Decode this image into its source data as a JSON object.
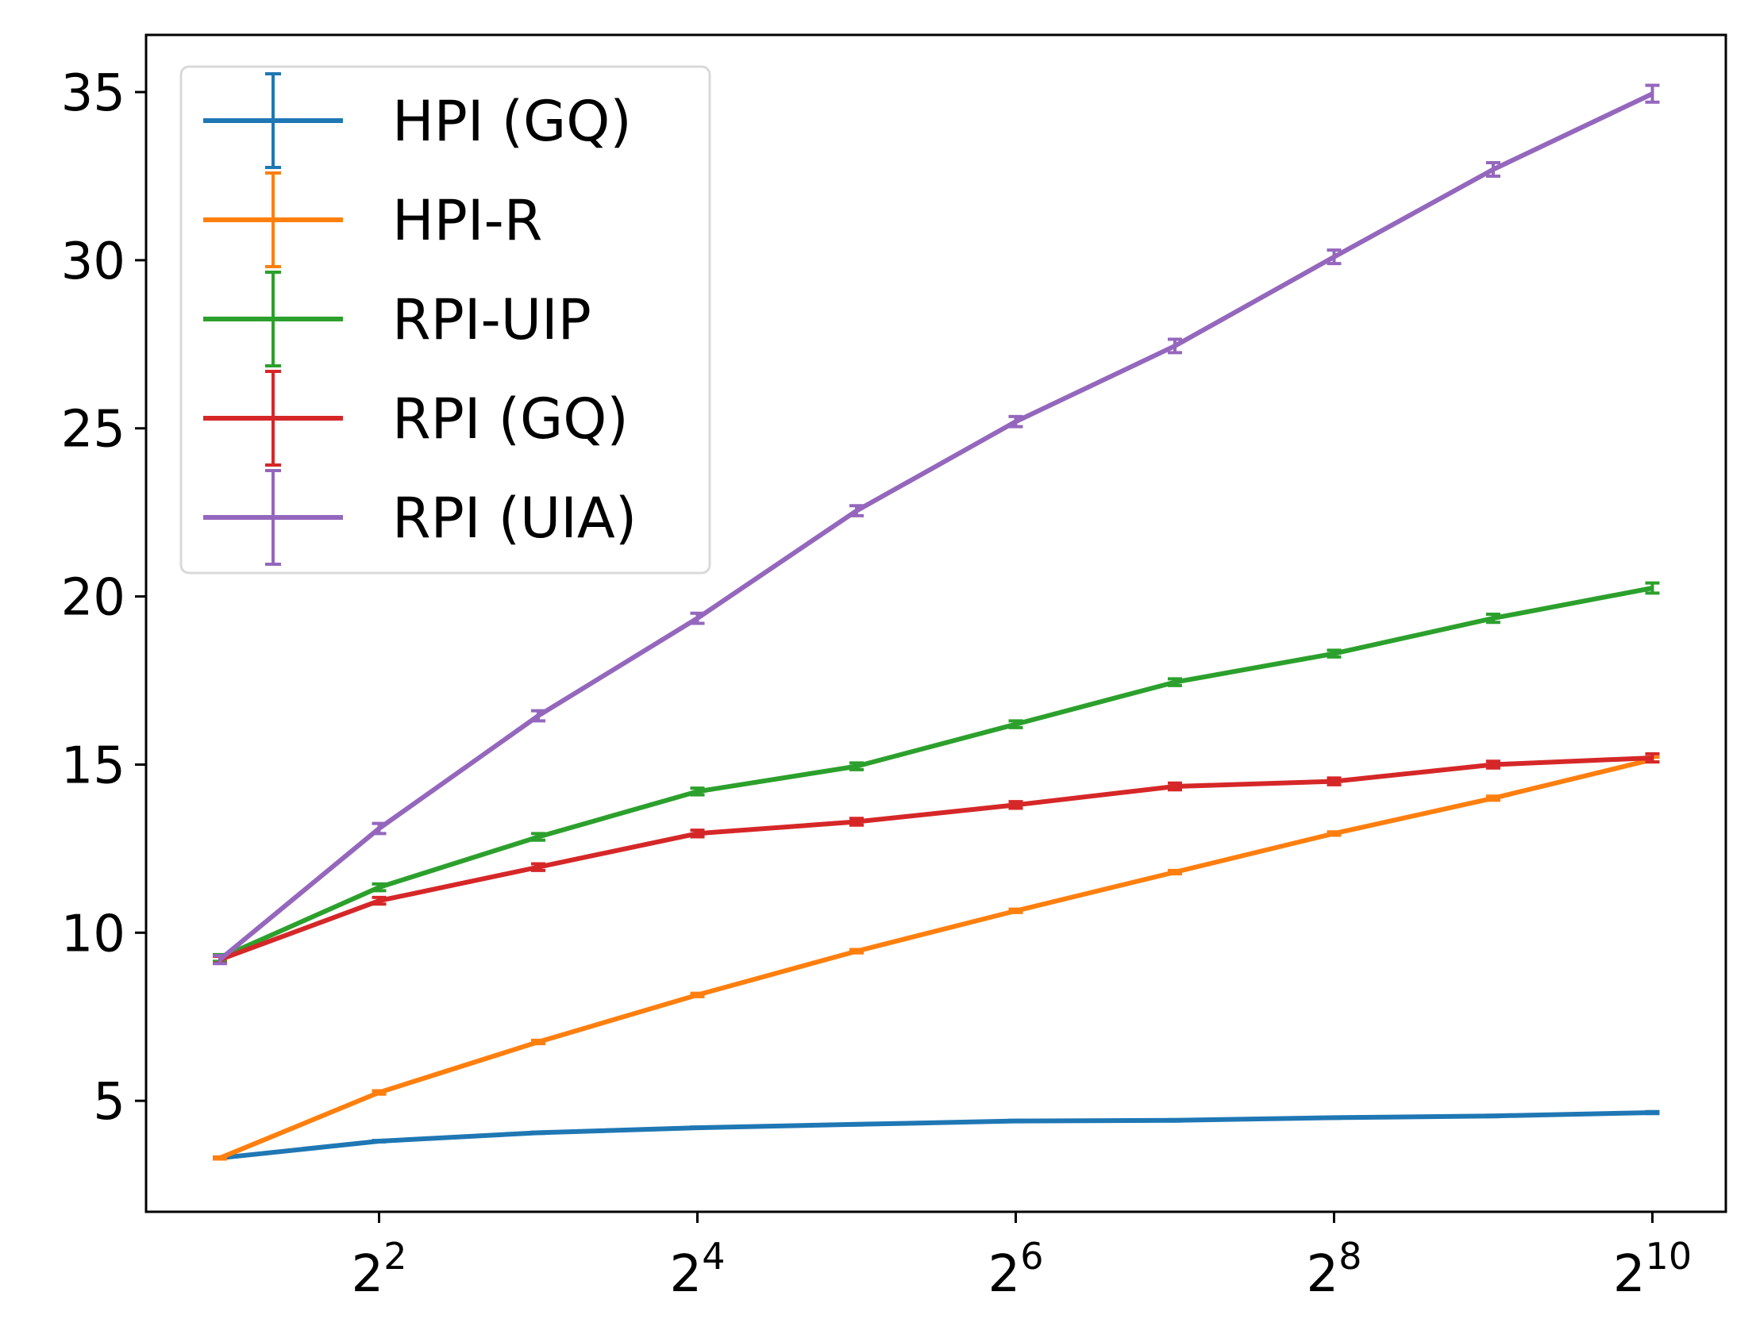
{
  "chart_data": {
    "type": "line",
    "error_bars": true,
    "x": [
      2,
      4,
      8,
      16,
      32,
      64,
      128,
      256,
      512,
      1024
    ],
    "x_scale": "log2",
    "x_ticks": [
      {
        "value": 4,
        "base": "2",
        "exp": "2"
      },
      {
        "value": 16,
        "base": "2",
        "exp": "4"
      },
      {
        "value": 64,
        "base": "2",
        "exp": "6"
      },
      {
        "value": 256,
        "base": "2",
        "exp": "8"
      },
      {
        "value": 1024,
        "base": "2",
        "exp": "10"
      }
    ],
    "y_ticks": [
      "5",
      "10",
      "15",
      "20",
      "25",
      "30",
      "35"
    ],
    "xlim": [
      1.45,
      1410
    ],
    "ylim": [
      1.7,
      36.7
    ],
    "grid": false,
    "legend_position": "top-left",
    "series": [
      {
        "name": "HPI (GQ)",
        "color": "#1f77b4",
        "values": [
          3.3,
          3.8,
          4.05,
          4.2,
          4.3,
          4.4,
          4.42,
          4.5,
          4.55,
          4.65
        ],
        "errors": [
          0.02,
          0.02,
          0.02,
          0.02,
          0.02,
          0.02,
          0.02,
          0.02,
          0.02,
          0.03
        ]
      },
      {
        "name": "HPI-R",
        "color": "#ff7f0e",
        "values": [
          3.3,
          5.25,
          6.75,
          8.15,
          9.45,
          10.65,
          11.8,
          12.95,
          14.0,
          15.15
        ],
        "errors": [
          0.03,
          0.05,
          0.05,
          0.05,
          0.05,
          0.05,
          0.05,
          0.05,
          0.06,
          0.07
        ]
      },
      {
        "name": "RPI-UIP",
        "color": "#2ca02c",
        "values": [
          9.25,
          11.35,
          12.85,
          14.2,
          14.95,
          16.2,
          17.45,
          18.3,
          19.35,
          20.25
        ],
        "errors": [
          0.1,
          0.1,
          0.1,
          0.1,
          0.1,
          0.1,
          0.1,
          0.1,
          0.12,
          0.15
        ]
      },
      {
        "name": "RPI (GQ)",
        "color": "#d62728",
        "values": [
          9.2,
          10.95,
          11.95,
          12.95,
          13.3,
          13.8,
          14.35,
          14.5,
          15.0,
          15.2
        ],
        "errors": [
          0.1,
          0.1,
          0.1,
          0.1,
          0.1,
          0.1,
          0.1,
          0.1,
          0.1,
          0.12
        ]
      },
      {
        "name": "RPI (UIA)",
        "color": "#9467bd",
        "values": [
          9.2,
          13.1,
          16.45,
          19.35,
          22.55,
          25.2,
          27.45,
          30.1,
          32.7,
          34.95
        ],
        "errors": [
          0.12,
          0.15,
          0.15,
          0.15,
          0.15,
          0.15,
          0.2,
          0.2,
          0.2,
          0.25
        ]
      }
    ]
  }
}
